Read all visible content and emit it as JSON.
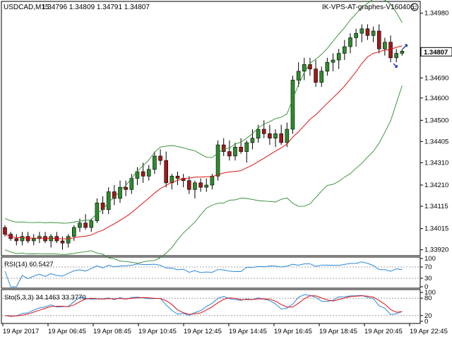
{
  "header": {
    "symbol_timeframe": "USDCAD,M15",
    "ohlc": "1.34796 1.34809 1.34791 1.34807",
    "expert_label": "IK-VPS-AT-graphes-V160406",
    "smiley_icon": "smiley-icon"
  },
  "price_axis": {
    "labels": [
      "1.34980",
      "1.34690",
      "1.34600",
      "1.34500",
      "1.34405",
      "1.34310",
      "1.34210",
      "1.34115",
      "1.34015",
      "1.33920"
    ],
    "current_price": "1.34807",
    "range": [
      1.339,
      1.3502
    ]
  },
  "rsi_panel": {
    "label": "RSI(14) 60.5427",
    "levels": [
      "100",
      "70",
      "30",
      "0"
    ],
    "value": 60.5427
  },
  "stoch_panel": {
    "label": "Sto(5,3,3) 34.1463 33.3770",
    "levels": [
      "100",
      "80",
      "20",
      "0"
    ],
    "main": 34.1463,
    "signal": 33.377
  },
  "time_axis": {
    "labels": [
      "19 Apr 2017",
      "19 Apr 06:45",
      "19 Apr 08:45",
      "19 Apr 10:45",
      "19 Apr 12:45",
      "19 Apr 14:45",
      "19 Apr 16:45",
      "19 Apr 18:45",
      "19 Apr 20:45",
      "19 Apr 22:45"
    ]
  },
  "colors": {
    "bull": "#2e8b2e",
    "bear": "#a01818",
    "bands": "#2e8b2e",
    "ma": "#dd1111",
    "rsi": "#2a88dd",
    "stoch_main": "#2a88dd",
    "stoch_signal": "#dd1111",
    "level_dash": "#a0a0a0",
    "arrow": "#1a2fb0"
  },
  "chart_data": {
    "type": "candlestick",
    "symbol": "USDCAD",
    "timeframe": "M15",
    "ohlc": [
      [
        1.3402,
        1.3403,
        1.3398,
        1.3399
      ],
      [
        1.3399,
        1.34,
        1.3396,
        1.3397
      ],
      [
        1.3397,
        1.3399,
        1.3394,
        1.3396
      ],
      [
        1.3396,
        1.34,
        1.3394,
        1.3398
      ],
      [
        1.3398,
        1.34,
        1.3395,
        1.3396
      ],
      [
        1.3396,
        1.3399,
        1.3394,
        1.3397
      ],
      [
        1.3397,
        1.34,
        1.3395,
        1.3398
      ],
      [
        1.3398,
        1.34,
        1.3395,
        1.3396
      ],
      [
        1.3396,
        1.3399,
        1.3393,
        1.3398
      ],
      [
        1.3398,
        1.34,
        1.3395,
        1.3396
      ],
      [
        1.3396,
        1.3398,
        1.3392,
        1.3395
      ],
      [
        1.3395,
        1.3399,
        1.3393,
        1.3398
      ],
      [
        1.3398,
        1.3403,
        1.3396,
        1.3402
      ],
      [
        1.3402,
        1.3406,
        1.34,
        1.3404
      ],
      [
        1.3404,
        1.3408,
        1.3401,
        1.3402
      ],
      [
        1.3402,
        1.3406,
        1.34,
        1.3405
      ],
      [
        1.3405,
        1.3415,
        1.3404,
        1.3413
      ],
      [
        1.3413,
        1.3416,
        1.3408,
        1.341
      ],
      [
        1.341,
        1.342,
        1.3408,
        1.3418
      ],
      [
        1.3418,
        1.3421,
        1.3412,
        1.3415
      ],
      [
        1.3415,
        1.3423,
        1.3413,
        1.342
      ],
      [
        1.342,
        1.3423,
        1.3416,
        1.3419
      ],
      [
        1.3419,
        1.3426,
        1.3417,
        1.3424
      ],
      [
        1.3424,
        1.3429,
        1.3421,
        1.3427
      ],
      [
        1.3427,
        1.3431,
        1.3422,
        1.3425
      ],
      [
        1.3425,
        1.343,
        1.3423,
        1.3428
      ],
      [
        1.3428,
        1.3436,
        1.3426,
        1.3434
      ],
      [
        1.3434,
        1.3437,
        1.343,
        1.3432
      ],
      [
        1.3432,
        1.3436,
        1.342,
        1.3422
      ],
      [
        1.3422,
        1.3426,
        1.3419,
        1.3425
      ],
      [
        1.3425,
        1.3427,
        1.3421,
        1.3424
      ],
      [
        1.3424,
        1.3426,
        1.342,
        1.3423
      ],
      [
        1.3423,
        1.3425,
        1.3417,
        1.3419
      ],
      [
        1.3419,
        1.3423,
        1.3415,
        1.3422
      ],
      [
        1.3422,
        1.3424,
        1.3418,
        1.342
      ],
      [
        1.342,
        1.3424,
        1.3418,
        1.3421
      ],
      [
        1.3421,
        1.3426,
        1.3419,
        1.3425
      ],
      [
        1.3425,
        1.3441,
        1.3423,
        1.3439
      ],
      [
        1.3439,
        1.3442,
        1.3434,
        1.3436
      ],
      [
        1.3436,
        1.3441,
        1.3432,
        1.3434
      ],
      [
        1.3434,
        1.344,
        1.3432,
        1.3438
      ],
      [
        1.3438,
        1.3442,
        1.3435,
        1.3436
      ],
      [
        1.3436,
        1.3441,
        1.3431,
        1.344
      ],
      [
        1.344,
        1.3446,
        1.3437,
        1.3442
      ],
      [
        1.3442,
        1.3448,
        1.344,
        1.3446
      ],
      [
        1.3446,
        1.345,
        1.3442,
        1.3444
      ],
      [
        1.3444,
        1.3448,
        1.3439,
        1.3442
      ],
      [
        1.3442,
        1.3446,
        1.3438,
        1.3444
      ],
      [
        1.3444,
        1.3448,
        1.3439,
        1.344
      ],
      [
        1.344,
        1.3449,
        1.3438,
        1.3446
      ],
      [
        1.3446,
        1.347,
        1.3444,
        1.3468
      ],
      [
        1.3468,
        1.3476,
        1.3465,
        1.3472
      ],
      [
        1.3472,
        1.3478,
        1.3468,
        1.3475
      ],
      [
        1.3475,
        1.3478,
        1.347,
        1.3473
      ],
      [
        1.3473,
        1.3477,
        1.3465,
        1.3467
      ],
      [
        1.3467,
        1.3474,
        1.3465,
        1.3472
      ],
      [
        1.3472,
        1.3478,
        1.347,
        1.3476
      ],
      [
        1.3476,
        1.348,
        1.3472,
        1.3477
      ],
      [
        1.3477,
        1.3482,
        1.3473,
        1.348
      ],
      [
        1.348,
        1.3486,
        1.3477,
        1.3483
      ],
      [
        1.3483,
        1.3489,
        1.348,
        1.3487
      ],
      [
        1.3487,
        1.3491,
        1.3483,
        1.3489
      ],
      [
        1.3489,
        1.3493,
        1.3485,
        1.3491
      ],
      [
        1.3491,
        1.3493,
        1.3486,
        1.3488
      ],
      [
        1.3488,
        1.3492,
        1.3485,
        1.349
      ],
      [
        1.349,
        1.3493,
        1.348,
        1.3482
      ],
      [
        1.3482,
        1.3487,
        1.3479,
        1.3485
      ],
      [
        1.3485,
        1.3488,
        1.3476,
        1.3478
      ],
      [
        1.3478,
        1.3482,
        1.3476,
        1.348
      ],
      [
        1.348,
        1.3482,
        1.3479,
        1.3481
      ]
    ],
    "indicators": [
      "Bollinger Bands",
      "Moving Average",
      "RSI(14)",
      "Stochastic(5,3,3)"
    ]
  }
}
